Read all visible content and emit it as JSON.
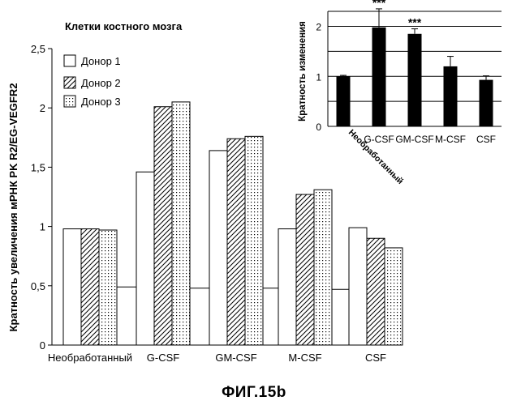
{
  "figure_caption": "ФИГ.15b",
  "chart_data": [
    {
      "type": "bar",
      "title": "Клетки костного мозга",
      "ylabel": "Кратность увеличения мРНК PK R2/EG-VEGFR2",
      "xlabel": "",
      "ylim": [
        0,
        2.5
      ],
      "yticks": [
        "0",
        "0,5",
        "1",
        "1,5",
        "2",
        "2,5"
      ],
      "ytick_values": [
        0,
        0.5,
        1,
        1.5,
        2,
        2.5
      ],
      "grid": false,
      "legend_position": "top-left",
      "categories": [
        "Необработанный",
        "G-CSF",
        "GM-CSF",
        "M-CSF",
        "CSF"
      ],
      "series": [
        {
          "name": "Донор 1",
          "pattern": "solid-white",
          "values": [
            0.98,
            1.46,
            1.64,
            0.98,
            0.99
          ]
        },
        {
          "name": "Донор 2",
          "pattern": "diagonal-hatch",
          "values": [
            0.98,
            2.01,
            1.74,
            1.27,
            0.9
          ]
        },
        {
          "name": "Донор 3",
          "pattern": "dotted",
          "values": [
            0.97,
            2.05,
            1.76,
            1.31,
            0.82
          ]
        }
      ],
      "baseline_segments": [
        0.49,
        0.48,
        0.48,
        0.47,
        0.47
      ],
      "colors": {
        "bar_outline": "#000000",
        "background": "#ffffff"
      }
    },
    {
      "type": "bar",
      "title": "",
      "ylabel": "Кратность изменения",
      "xlabel": "",
      "ylim": [
        0,
        2.3
      ],
      "yticks": [
        "0",
        "1",
        "2"
      ],
      "ytick_values": [
        0,
        1,
        2
      ],
      "grid": true,
      "categories": [
        "Необработанный",
        "G-CSF",
        "GM-CSF",
        "M-CSF",
        "CSF"
      ],
      "values": [
        1.0,
        1.98,
        1.85,
        1.2,
        0.93
      ],
      "errors": [
        0.02,
        0.37,
        0.1,
        0.2,
        0.08
      ],
      "annotations": [
        "",
        "***",
        "***",
        "",
        ""
      ],
      "colors": {
        "bar_fill": "#000000",
        "grid": "#000000"
      }
    }
  ]
}
